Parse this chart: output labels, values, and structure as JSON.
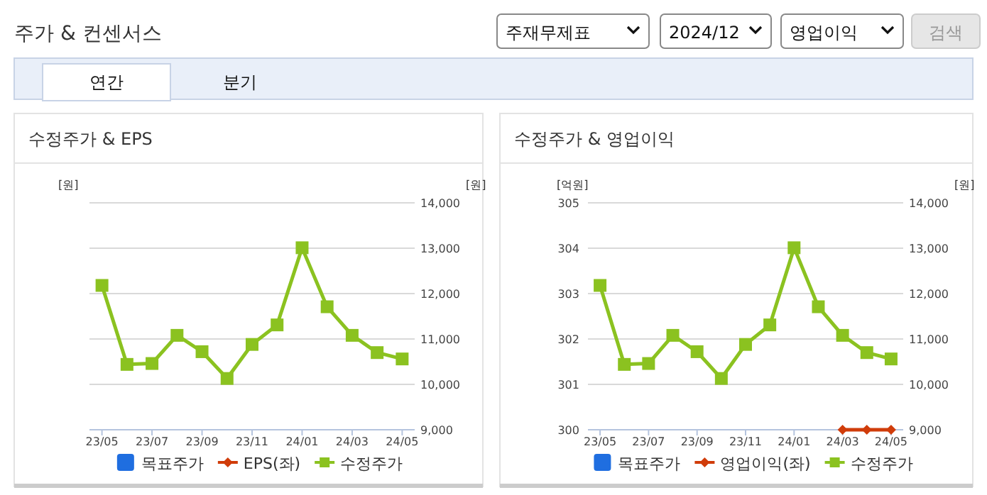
{
  "chart_data": [
    {
      "type": "line",
      "title": "수정주가 & EPS",
      "ylabel": "[원]",
      "y2label": "[원]",
      "annotations": [
        "주가 & 컨센서스",
        "주재무제표",
        "2024/12",
        "영업이익",
        "검색",
        "연간",
        "분기"
      ],
      "categories": [
        "23/05",
        null,
        "23/07",
        null,
        "23/09",
        null,
        "23/11",
        null,
        "24/01",
        null,
        "24/03",
        null,
        "24/05"
      ],
      "y2lim": [
        9000,
        14000
      ],
      "y2ticks": [
        {
          "value": 9000,
          "label": "9,000"
        },
        {
          "value": 10000,
          "label": "10,000"
        },
        {
          "value": 11000,
          "label": "11,000"
        },
        {
          "value": 12000,
          "label": "12,000"
        },
        {
          "value": 13000,
          "label": "13,000"
        },
        {
          "value": 14000,
          "label": "14,000"
        }
      ],
      "tick_labels": [
        "x",
        "y2"
      ],
      "grid": "y",
      "legend": "bottom",
      "series": [
        {
          "name": "목표주가",
          "type": "scatter",
          "marker": "square",
          "color": "#1f6ee0",
          "values": [
            null,
            null,
            null,
            null,
            null,
            null,
            null,
            null,
            null,
            null,
            null,
            null,
            null
          ]
        },
        {
          "name": "EPS(좌)",
          "marker": "diamond",
          "color": "#d03c0a",
          "values": [
            null,
            null,
            null,
            null,
            null,
            null,
            null,
            null,
            null,
            null,
            null,
            null,
            null
          ]
        },
        {
          "name": "수정주가",
          "marker": "square",
          "color": "#8bc220",
          "axis": "y2",
          "values": [
            12180,
            10440,
            10460,
            11080,
            10720,
            10130,
            10880,
            11310,
            13010,
            11710,
            11080,
            10700,
            10560
          ]
        }
      ]
    },
    {
      "type": "line",
      "title": "수정주가 & 영업이익",
      "ylabel": "[억원]",
      "y2label": "[원]",
      "categories": [
        "23/05",
        null,
        "23/07",
        null,
        "23/09",
        null,
        "23/11",
        null,
        "24/01",
        null,
        "24/03",
        null,
        "24/05"
      ],
      "ylim": [
        300,
        305
      ],
      "yticks": [
        300,
        301,
        302,
        303,
        304,
        305
      ],
      "y2lim": [
        9000,
        14000
      ],
      "y2ticks": [
        {
          "value": 9000,
          "label": "9,000"
        },
        {
          "value": 10000,
          "label": "10,000"
        },
        {
          "value": 11000,
          "label": "11,000"
        },
        {
          "value": 12000,
          "label": "12,000"
        },
        {
          "value": 13000,
          "label": "13,000"
        },
        {
          "value": 14000,
          "label": "14,000"
        }
      ],
      "grid": "y",
      "legend": "bottom",
      "series": [
        {
          "name": "목표주가",
          "type": "scatter",
          "marker": "square",
          "color": "#1f6ee0",
          "values": [
            null,
            null,
            null,
            null,
            null,
            null,
            null,
            null,
            null,
            null,
            null,
            null,
            null
          ]
        },
        {
          "name": "영업이익(좌)",
          "marker": "diamond",
          "color": "#d03c0a",
          "values": [
            null,
            null,
            null,
            null,
            null,
            null,
            null,
            null,
            null,
            null,
            300,
            300,
            300
          ]
        },
        {
          "name": "수정주가",
          "marker": "square",
          "color": "#8bc220",
          "axis": "y2",
          "values": [
            12180,
            10440,
            10460,
            11080,
            10720,
            10130,
            10880,
            11310,
            13010,
            11710,
            11080,
            10700,
            10560
          ]
        }
      ]
    }
  ]
}
